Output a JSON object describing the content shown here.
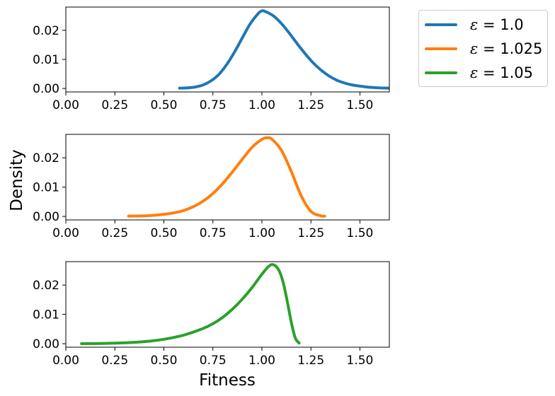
{
  "chart_data": {
    "type": "line",
    "xlabel": "Fitness",
    "ylabel": "Density",
    "xlim": [
      0.0,
      1.65
    ],
    "xticks": [
      "0.00",
      "0.25",
      "0.50",
      "0.75",
      "1.00",
      "1.25",
      "1.50"
    ],
    "ylim": [
      -0.0012,
      0.028
    ],
    "yticks": [
      "0.00",
      "0.01",
      "0.02"
    ],
    "legend_position": "outside top-right",
    "grid": false,
    "subplots": [
      {
        "series_name": "ε = 1.0",
        "color": "#1f77b4",
        "x": [
          0.58,
          0.62,
          0.66,
          0.7,
          0.74,
          0.78,
          0.82,
          0.86,
          0.9,
          0.94,
          0.98,
          1.0,
          1.02,
          1.06,
          1.1,
          1.14,
          1.18,
          1.22,
          1.26,
          1.3,
          1.34,
          1.38,
          1.42,
          1.46,
          1.5,
          1.55,
          1.6,
          1.65
        ],
        "y": [
          0.0001,
          0.0002,
          0.0005,
          0.0012,
          0.0026,
          0.0048,
          0.0082,
          0.0125,
          0.0174,
          0.0222,
          0.0257,
          0.0267,
          0.0264,
          0.0249,
          0.0223,
          0.019,
          0.0154,
          0.012,
          0.0089,
          0.0064,
          0.0044,
          0.0029,
          0.0019,
          0.0012,
          0.0008,
          0.0004,
          0.0002,
          0.0001
        ]
      },
      {
        "series_name": "ε = 1.025",
        "color": "#ff7f0e",
        "x": [
          0.32,
          0.4,
          0.45,
          0.5,
          0.55,
          0.6,
          0.65,
          0.7,
          0.75,
          0.8,
          0.85,
          0.9,
          0.95,
          1.0,
          1.025,
          1.05,
          1.1,
          1.15,
          1.2,
          1.25,
          1.3,
          1.32
        ],
        "y": [
          0.0001,
          0.0002,
          0.0004,
          0.0007,
          0.0012,
          0.002,
          0.0033,
          0.0052,
          0.0078,
          0.0112,
          0.0152,
          0.0195,
          0.0236,
          0.0263,
          0.0268,
          0.0264,
          0.0225,
          0.0153,
          0.0071,
          0.0017,
          0.0002,
          0.0001
        ]
      },
      {
        "series_name": "ε = 1.05",
        "color": "#2ca02c",
        "x": [
          0.08,
          0.2,
          0.3,
          0.4,
          0.5,
          0.6,
          0.7,
          0.75,
          0.8,
          0.85,
          0.9,
          0.95,
          1.0,
          1.03,
          1.05,
          1.07,
          1.09,
          1.11,
          1.13,
          1.15,
          1.17,
          1.19
        ],
        "y": [
          0.0,
          0.0001,
          0.0003,
          0.0007,
          0.0015,
          0.0029,
          0.0052,
          0.0068,
          0.009,
          0.0118,
          0.0152,
          0.0192,
          0.0237,
          0.0261,
          0.027,
          0.0265,
          0.0246,
          0.0205,
          0.0142,
          0.0073,
          0.002,
          0.0002
        ]
      }
    ]
  },
  "legend": {
    "items": [
      {
        "symbol": "ε",
        "text": " = 1.0",
        "color": "#1f77b4"
      },
      {
        "symbol": "ε",
        "text": " = 1.025",
        "color": "#ff7f0e"
      },
      {
        "symbol": "ε",
        "text": " = 1.05",
        "color": "#2ca02c"
      }
    ]
  }
}
